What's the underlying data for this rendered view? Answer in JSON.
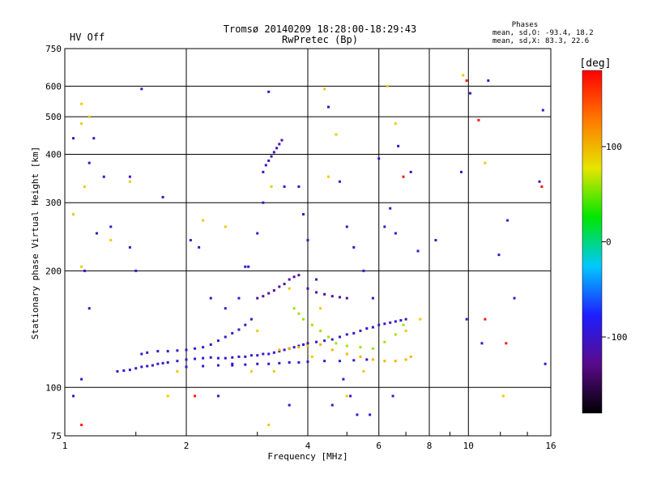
{
  "header": {
    "title_line1": "Tromsø 20140209 18:28:00-18:29:43",
    "title_line2": "RwPretec (Bp)",
    "status": "HV Off",
    "status_color": "#cc0000",
    "phases_heading": "Phases",
    "phases_o": "mean, sd,O: -93.4, 18.2",
    "phases_x": "mean, sd,X:  83.3, 22.6"
  },
  "chart_data": {
    "type": "scatter",
    "title": "Tromsø 20140209 18:28:00-18:29:43",
    "subtitle": "RwPretec (Bp)",
    "xlabel": "Frequency [MHz]",
    "ylabel": "Stationary phase Virtual Height [km]",
    "x_scale": "log",
    "y_scale": "log",
    "xlim": [
      1,
      16
    ],
    "ylim": [
      75,
      750
    ],
    "grid": true,
    "x_ticks": [
      1,
      2,
      4,
      6,
      8,
      10,
      16
    ],
    "y_ticks": [
      75,
      100,
      200,
      300,
      400,
      500,
      600,
      750
    ],
    "colorbar": {
      "label": "[deg]",
      "range": [
        -180,
        180
      ],
      "ticks": [
        100,
        0,
        -100
      ],
      "stops": [
        "#000000",
        "#5a0a8a",
        "#1e1eff",
        "#00c8ff",
        "#00e600",
        "#e6e600",
        "#ff7800",
        "#ff0000"
      ]
    },
    "series": [
      {
        "trace": "O",
        "color_phase": -100,
        "points": [
          [
            1.35,
            110
          ],
          [
            1.4,
            110.5
          ],
          [
            1.45,
            111
          ],
          [
            1.5,
            112
          ],
          [
            1.55,
            113
          ],
          [
            1.6,
            113.5
          ],
          [
            1.65,
            114
          ],
          [
            1.7,
            115
          ],
          [
            1.75,
            115.5
          ],
          [
            1.8,
            116
          ],
          [
            1.9,
            117
          ],
          [
            2.0,
            118
          ],
          [
            2.1,
            118.5
          ],
          [
            2.2,
            119
          ],
          [
            2.3,
            119.5
          ],
          [
            2.4,
            119
          ],
          [
            2.5,
            119
          ],
          [
            2.6,
            119.5
          ],
          [
            2.7,
            120
          ],
          [
            2.8,
            120
          ],
          [
            2.9,
            121
          ],
          [
            3.0,
            121
          ],
          [
            3.1,
            122
          ],
          [
            3.2,
            122
          ],
          [
            3.3,
            123
          ],
          [
            3.4,
            124
          ],
          [
            3.5,
            125
          ],
          [
            3.6,
            126
          ],
          [
            3.7,
            127
          ],
          [
            3.8,
            128
          ],
          [
            3.9,
            129
          ],
          [
            4.0,
            130
          ],
          [
            4.2,
            131
          ],
          [
            4.4,
            132
          ],
          [
            4.6,
            133
          ],
          [
            4.8,
            135
          ],
          [
            5.0,
            137
          ],
          [
            5.2,
            138
          ],
          [
            5.4,
            140
          ],
          [
            5.6,
            142
          ],
          [
            5.8,
            143
          ],
          [
            6.0,
            145
          ],
          [
            6.2,
            146
          ],
          [
            6.4,
            147
          ],
          [
            6.6,
            148
          ],
          [
            6.8,
            149
          ],
          [
            7.0,
            150
          ]
        ]
      },
      {
        "trace": "O-lower",
        "color_phase": -100,
        "points": [
          [
            2.0,
            113
          ],
          [
            2.2,
            113.5
          ],
          [
            2.4,
            114
          ],
          [
            2.6,
            114
          ],
          [
            2.8,
            114.5
          ],
          [
            3.0,
            115
          ],
          [
            3.2,
            115
          ],
          [
            3.4,
            115.5
          ],
          [
            3.6,
            116
          ],
          [
            3.8,
            116
          ],
          [
            4.0,
            116.5
          ],
          [
            4.4,
            117
          ],
          [
            4.8,
            117
          ],
          [
            5.2,
            117.5
          ],
          [
            5.6,
            118
          ]
        ]
      },
      {
        "trace": "O-upper",
        "color_phase": -100,
        "points": [
          [
            1.55,
            122
          ],
          [
            1.6,
            123
          ],
          [
            1.7,
            124
          ],
          [
            1.8,
            124
          ],
          [
            1.9,
            124.5
          ],
          [
            2.0,
            125
          ],
          [
            2.1,
            126
          ],
          [
            2.2,
            127
          ],
          [
            2.3,
            129
          ],
          [
            2.4,
            132
          ],
          [
            2.5,
            135
          ],
          [
            2.6,
            138
          ],
          [
            2.7,
            141
          ],
          [
            2.8,
            145
          ],
          [
            2.9,
            150
          ]
        ]
      },
      {
        "trace": "X",
        "color_phase": 100,
        "points": [
          [
            3.4,
            125
          ],
          [
            3.6,
            126
          ],
          [
            3.8,
            127
          ],
          [
            4.0,
            128
          ],
          [
            4.3,
            129
          ],
          [
            4.6,
            125
          ],
          [
            5.0,
            122
          ],
          [
            5.4,
            120
          ],
          [
            5.8,
            118
          ],
          [
            6.2,
            117
          ],
          [
            6.6,
            117
          ],
          [
            7.0,
            118
          ],
          [
            7.2,
            120
          ]
        ]
      },
      {
        "trace": "O-mid",
        "color_phase": -120,
        "points": [
          [
            3.0,
            170
          ],
          [
            3.1,
            172
          ],
          [
            3.2,
            175
          ],
          [
            3.3,
            178
          ],
          [
            3.4,
            182
          ],
          [
            3.5,
            185
          ],
          [
            3.6,
            190
          ],
          [
            3.7,
            193
          ],
          [
            3.8,
            195
          ],
          [
            4.0,
            180
          ],
          [
            4.2,
            176
          ],
          [
            4.4,
            174
          ],
          [
            4.6,
            172
          ],
          [
            4.8,
            171
          ],
          [
            5.0,
            170
          ]
        ]
      },
      {
        "trace": "X-sparse",
        "color_phase": 60,
        "points": [
          [
            3.7,
            160
          ],
          [
            3.8,
            155
          ],
          [
            3.9,
            150
          ],
          [
            4.1,
            145
          ],
          [
            4.3,
            140
          ],
          [
            4.5,
            135
          ],
          [
            4.7,
            130
          ],
          [
            5.0,
            128
          ],
          [
            5.4,
            127
          ],
          [
            5.8,
            126
          ],
          [
            6.2,
            131
          ],
          [
            6.6,
            137
          ],
          [
            6.9,
            145
          ]
        ]
      },
      {
        "trace": "F2",
        "color_phase": -110,
        "points": [
          [
            3.1,
            360
          ],
          [
            3.15,
            375
          ],
          [
            3.2,
            385
          ],
          [
            3.25,
            395
          ],
          [
            3.3,
            405
          ],
          [
            3.35,
            415
          ],
          [
            3.4,
            425
          ],
          [
            3.45,
            435
          ]
        ]
      },
      {
        "trace": "noise",
        "color_phase": -100,
        "points": [
          [
            1.05,
            95
          ],
          [
            1.1,
            105
          ],
          [
            1.15,
            160
          ],
          [
            1.12,
            200
          ],
          [
            1.2,
            250
          ],
          [
            1.15,
            380
          ],
          [
            1.18,
            440
          ],
          [
            1.05,
            440
          ],
          [
            1.25,
            350
          ],
          [
            1.3,
            260
          ],
          [
            1.45,
            350
          ],
          [
            1.45,
            230
          ],
          [
            1.5,
            200
          ],
          [
            1.55,
            590
          ],
          [
            1.75,
            310
          ],
          [
            2.05,
            240
          ],
          [
            2.15,
            230
          ],
          [
            2.4,
            95
          ],
          [
            2.6,
            115
          ],
          [
            2.7,
            170
          ],
          [
            2.8,
            205
          ],
          [
            2.85,
            205
          ],
          [
            3.0,
            250
          ],
          [
            3.1,
            300
          ],
          [
            3.2,
            580
          ],
          [
            3.5,
            330
          ],
          [
            3.6,
            90
          ],
          [
            3.8,
            330
          ],
          [
            3.9,
            280
          ],
          [
            4.0,
            240
          ],
          [
            4.2,
            190
          ],
          [
            4.5,
            530
          ],
          [
            4.8,
            340
          ],
          [
            5.0,
            260
          ],
          [
            5.2,
            230
          ],
          [
            5.5,
            200
          ],
          [
            5.8,
            170
          ],
          [
            6.0,
            390
          ],
          [
            6.2,
            260
          ],
          [
            6.4,
            290
          ],
          [
            6.6,
            250
          ],
          [
            6.7,
            420
          ],
          [
            7.2,
            360
          ],
          [
            7.5,
            225
          ],
          [
            8.3,
            240
          ],
          [
            9.6,
            360
          ],
          [
            9.9,
            150
          ],
          [
            10.1,
            575
          ],
          [
            10.8,
            130
          ],
          [
            11.2,
            620
          ],
          [
            11.9,
            220
          ],
          [
            12.5,
            270
          ],
          [
            13.0,
            170
          ],
          [
            15.3,
            520
          ],
          [
            15.5,
            115
          ],
          [
            15.0,
            340
          ],
          [
            4.6,
            90
          ],
          [
            5.1,
            95
          ],
          [
            4.9,
            105
          ],
          [
            5.3,
            85
          ],
          [
            5.7,
            85
          ],
          [
            6.5,
            95
          ],
          [
            2.3,
            170
          ],
          [
            2.5,
            160
          ]
        ]
      },
      {
        "trace": "noise-colored",
        "color_phase": 90,
        "points": [
          [
            1.1,
            540
          ],
          [
            1.1,
            480
          ],
          [
            1.15,
            500
          ],
          [
            1.12,
            330
          ],
          [
            1.1,
            205
          ],
          [
            1.05,
            280
          ],
          [
            1.3,
            240
          ],
          [
            1.45,
            340
          ],
          [
            1.8,
            95
          ],
          [
            1.9,
            110
          ],
          [
            2.2,
            270
          ],
          [
            2.5,
            260
          ],
          [
            3.0,
            140
          ],
          [
            3.2,
            80
          ],
          [
            3.25,
            330
          ],
          [
            3.6,
            180
          ],
          [
            4.1,
            120
          ],
          [
            4.3,
            160
          ],
          [
            4.4,
            590
          ],
          [
            4.5,
            350
          ],
          [
            4.7,
            450
          ],
          [
            5.0,
            95
          ],
          [
            5.5,
            110
          ],
          [
            6.3,
            600
          ],
          [
            6.6,
            480
          ],
          [
            7.0,
            140
          ],
          [
            7.6,
            150
          ],
          [
            9.7,
            640
          ],
          [
            11.0,
            380
          ],
          [
            12.2,
            95
          ],
          [
            2.9,
            110
          ],
          [
            3.3,
            110
          ]
        ]
      },
      {
        "trace": "noise-red",
        "color_phase": 170,
        "points": [
          [
            1.1,
            80
          ],
          [
            2.1,
            95
          ],
          [
            6.9,
            350
          ],
          [
            9.9,
            620
          ],
          [
            10.6,
            490
          ],
          [
            11.0,
            150
          ],
          [
            12.4,
            130
          ],
          [
            15.2,
            330
          ]
        ]
      }
    ]
  }
}
